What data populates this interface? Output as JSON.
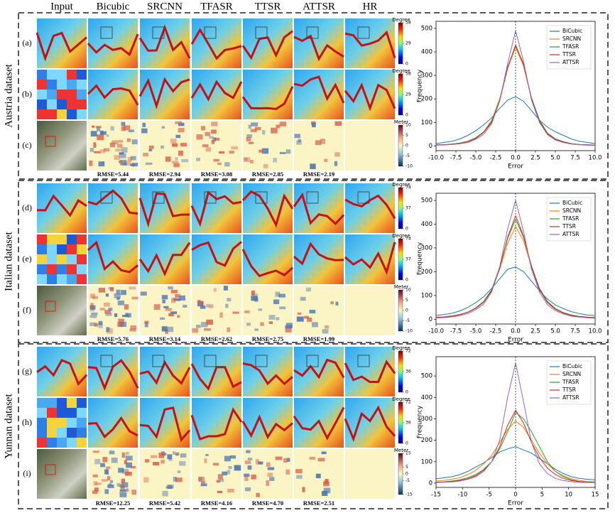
{
  "columns": [
    "Input",
    "Bicubic",
    "SRCNN",
    "TFASR",
    "TTSR",
    "ATTSR",
    "HR"
  ],
  "datasets": [
    {
      "name": "Austria dataset",
      "rows": [
        {
          "label": "(a)",
          "colorbar": {
            "unit": "Degree",
            "ticks": [
              58,
              29,
              0
            ]
          }
        },
        {
          "label": "(b)",
          "colorbar": {
            "unit": "Degree",
            "ticks": [
              58,
              29,
              0
            ]
          }
        },
        {
          "label": "(c)",
          "colorbar": {
            "unit": "Meter",
            "ticks": [
              10,
              5,
              0,
              -5,
              -10
            ]
          }
        }
      ],
      "rmse": [
        "RMSE=5.44",
        "RMSE=2.94",
        "RMSE=3.08",
        "RMSE=2.85",
        "RMSE=2.19"
      ]
    },
    {
      "name": "Italian dataset",
      "rows": [
        {
          "label": "(d)",
          "colorbar": {
            "unit": "Degree",
            "ticks": [
              74,
              37,
              0
            ]
          }
        },
        {
          "label": "(e)",
          "colorbar": {
            "unit": "Degree",
            "ticks": [
              74,
              37,
              0
            ]
          }
        },
        {
          "label": "(f)",
          "colorbar": {
            "unit": "Meter",
            "ticks": [
              10,
              5,
              0,
              -5,
              -10
            ]
          }
        }
      ],
      "rmse": [
        "RMSE=5.76",
        "RMSE=3.14",
        "RMSE=2.62",
        "RMSE=2.75",
        "RMSE=1.99"
      ]
    },
    {
      "name": "Yunnan dataset",
      "rows": [
        {
          "label": "(g)",
          "colorbar": {
            "unit": "Degree",
            "ticks": [
              72,
              36,
              0
            ]
          }
        },
        {
          "label": "(h)",
          "colorbar": {
            "unit": "Degree",
            "ticks": [
              72,
              36,
              0
            ]
          }
        },
        {
          "label": "(i)",
          "colorbar": {
            "unit": "Meter",
            "ticks": [
              15,
              5,
              0,
              -5,
              -15
            ]
          }
        }
      ],
      "rmse": [
        "RMSE=12.25",
        "RMSE=5.42",
        "RMSE=4.16",
        "RMSE=4.70",
        "RMSE=2.51"
      ]
    }
  ],
  "chart_data": [
    {
      "type": "line",
      "x_label": "Error",
      "y_label": "Frequency",
      "legend": "upper right",
      "reference_x": 0,
      "x": [
        -10,
        -9,
        -8,
        -7,
        -6,
        -5,
        -4,
        -3,
        -2,
        -1,
        0,
        1,
        2,
        3,
        4,
        5,
        6,
        7,
        8,
        9,
        10
      ],
      "xlim": [
        -10,
        10
      ],
      "xticks": [
        {
          "value": -10,
          "label": "-10.0"
        },
        {
          "value": -7.5,
          "label": "-7.5"
        },
        {
          "value": -5,
          "label": "-5.0"
        },
        {
          "value": -2.5,
          "label": "-2.5"
        },
        {
          "value": 0,
          "label": "0.0"
        },
        {
          "value": 2.5,
          "label": "2.5"
        },
        {
          "value": 5,
          "label": "5.0"
        },
        {
          "value": 7.5,
          "label": "7.5"
        },
        {
          "value": 10,
          "label": "10.0"
        }
      ],
      "ylim": [
        -20,
        530
      ],
      "yticks": [
        0,
        100,
        200,
        300,
        400,
        500
      ],
      "series": [
        {
          "name": "BiCubic",
          "color": "#1f77b4",
          "values": [
            10,
            15,
            20,
            30,
            45,
            65,
            90,
            120,
            160,
            195,
            210,
            190,
            150,
            110,
            80,
            60,
            45,
            30,
            20,
            15,
            10
          ]
        },
        {
          "name": "SRCNN",
          "color": "#ff7f0e",
          "values": [
            5,
            5,
            8,
            12,
            20,
            35,
            60,
            110,
            200,
            330,
            420,
            340,
            200,
            110,
            55,
            30,
            18,
            10,
            6,
            5,
            4
          ]
        },
        {
          "name": "TFASR",
          "color": "#2ca02c",
          "values": [
            5,
            5,
            8,
            12,
            20,
            35,
            60,
            105,
            195,
            330,
            430,
            345,
            205,
            110,
            55,
            30,
            18,
            10,
            6,
            5,
            4
          ]
        },
        {
          "name": "TTSR",
          "color": "#d62728",
          "values": [
            4,
            5,
            7,
            11,
            18,
            32,
            58,
            100,
            190,
            335,
            425,
            350,
            200,
            105,
            50,
            28,
            16,
            9,
            6,
            4,
            3
          ]
        },
        {
          "name": "ATTSR",
          "color": "#9467bd",
          "values": [
            3,
            4,
            6,
            9,
            15,
            28,
            50,
            95,
            190,
            350,
            490,
            360,
            195,
            100,
            48,
            25,
            14,
            8,
            5,
            3,
            2
          ]
        }
      ]
    },
    {
      "type": "line",
      "x_label": "Error",
      "y_label": "Frequency",
      "legend": "upper right",
      "reference_x": 0,
      "x": [
        -10,
        -9,
        -8,
        -7,
        -6,
        -5,
        -4,
        -3,
        -2,
        -1,
        0,
        1,
        2,
        3,
        4,
        5,
        6,
        7,
        8,
        9,
        10
      ],
      "xlim": [
        -10,
        10
      ],
      "xticks": [
        {
          "value": -10,
          "label": "-10.0"
        },
        {
          "value": -7.5,
          "label": "-7.5"
        },
        {
          "value": -5,
          "label": "-5.0"
        },
        {
          "value": -2.5,
          "label": "-2.5"
        },
        {
          "value": 0,
          "label": "0.0"
        },
        {
          "value": 2.5,
          "label": "2.5"
        },
        {
          "value": 5,
          "label": "5.0"
        },
        {
          "value": 7.5,
          "label": "7.5"
        },
        {
          "value": 10,
          "label": "10.0"
        }
      ],
      "ylim": [
        -20,
        530
      ],
      "yticks": [
        0,
        100,
        200,
        300,
        400,
        500
      ],
      "series": [
        {
          "name": "BiCubic",
          "color": "#1f77b4",
          "values": [
            15,
            20,
            25,
            35,
            50,
            70,
            95,
            130,
            170,
            210,
            220,
            200,
            160,
            120,
            85,
            60,
            45,
            32,
            24,
            18,
            15
          ]
        },
        {
          "name": "SRCNN",
          "color": "#ff7f0e",
          "values": [
            8,
            10,
            14,
            20,
            30,
            48,
            75,
            120,
            210,
            320,
            390,
            330,
            220,
            130,
            75,
            45,
            28,
            18,
            12,
            9,
            7
          ]
        },
        {
          "name": "TFASR",
          "color": "#2ca02c",
          "values": [
            8,
            10,
            14,
            20,
            30,
            48,
            75,
            125,
            220,
            340,
            420,
            345,
            225,
            130,
            75,
            45,
            28,
            18,
            12,
            9,
            7
          ]
        },
        {
          "name": "TTSR",
          "color": "#d62728",
          "values": [
            7,
            9,
            13,
            19,
            29,
            46,
            72,
            120,
            215,
            345,
            435,
            350,
            220,
            125,
            70,
            42,
            26,
            16,
            11,
            8,
            6
          ]
        },
        {
          "name": "ATTSR",
          "color": "#9467bd",
          "values": [
            5,
            7,
            10,
            15,
            24,
            40,
            65,
            115,
            220,
            380,
            500,
            370,
            210,
            115,
            62,
            36,
            22,
            13,
            9,
            6,
            4
          ]
        }
      ]
    },
    {
      "type": "line",
      "x_label": "Error",
      "y_label": "Frequency",
      "legend": "upper right",
      "reference_x": 0,
      "x": [
        -15,
        -13.5,
        -12,
        -10.5,
        -9,
        -7.5,
        -6,
        -4.5,
        -3,
        -1.5,
        0,
        1.5,
        3,
        4.5,
        6,
        7.5,
        9,
        10.5,
        12,
        13.5,
        15
      ],
      "xlim": [
        -15,
        15
      ],
      "xticks": [
        -15,
        -10,
        -5,
        0,
        5,
        10,
        15
      ],
      "ylim": [
        -20,
        590
      ],
      "yticks": [
        0,
        100,
        200,
        300,
        400,
        500
      ],
      "series": [
        {
          "name": "BiCubic",
          "color": "#1f77b4",
          "values": [
            20,
            25,
            30,
            40,
            55,
            75,
            95,
            120,
            145,
            160,
            170,
            155,
            140,
            115,
            90,
            65,
            45,
            30,
            22,
            18,
            15
          ]
        },
        {
          "name": "SRCNN",
          "color": "#ff7f0e",
          "values": [
            10,
            12,
            18,
            25,
            40,
            60,
            90,
            130,
            190,
            250,
            290,
            260,
            200,
            140,
            90,
            55,
            35,
            20,
            12,
            8,
            6
          ]
        },
        {
          "name": "TFASR",
          "color": "#2ca02c",
          "values": [
            5,
            6,
            10,
            15,
            25,
            40,
            65,
            100,
            160,
            240,
            330,
            300,
            240,
            170,
            100,
            55,
            30,
            15,
            8,
            5,
            4
          ]
        },
        {
          "name": "TTSR",
          "color": "#d62728",
          "values": [
            4,
            5,
            8,
            12,
            20,
            35,
            60,
            100,
            170,
            270,
            340,
            280,
            190,
            120,
            70,
            40,
            22,
            12,
            7,
            4,
            3
          ]
        },
        {
          "name": "ATTSR",
          "color": "#9467bd",
          "values": [
            3,
            4,
            6,
            10,
            18,
            30,
            55,
            100,
            200,
            400,
            560,
            380,
            190,
            90,
            45,
            22,
            12,
            7,
            4,
            3,
            2
          ]
        }
      ]
    }
  ]
}
